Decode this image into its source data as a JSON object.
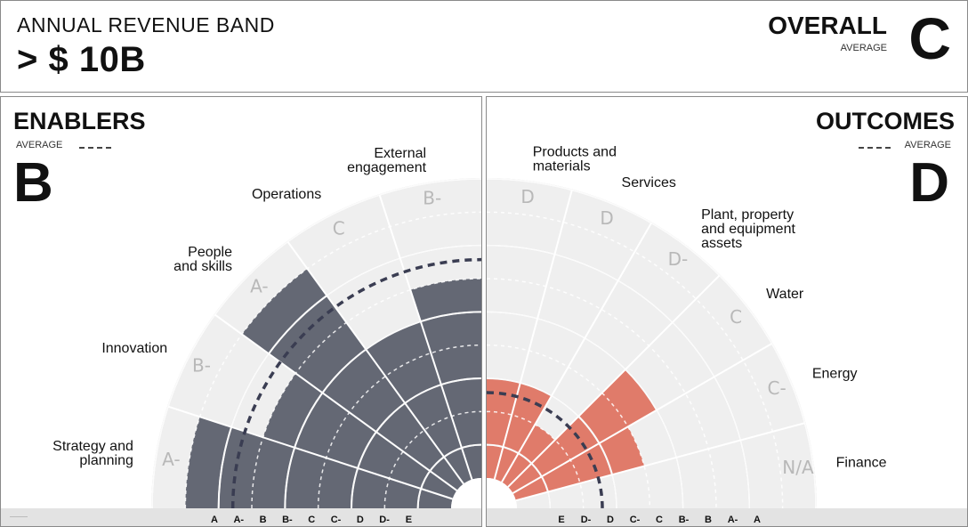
{
  "header": {
    "band_label": "ANNUAL REVENUE BAND",
    "band_value": "> $ 10B",
    "overall_title": "OVERALL",
    "overall_sub": "AVERAGE",
    "overall_grade": "C"
  },
  "enablers": {
    "title": "ENABLERS",
    "avg_label": "AVERAGE",
    "avg_grade": "B",
    "avg_level": 7,
    "categories": [
      {
        "name": "Strategy and planning",
        "lines": [
          "Strategy and",
          "planning"
        ],
        "grade": "A-",
        "level": 8
      },
      {
        "name": "Innovation",
        "lines": [
          "Innovation"
        ],
        "grade": "B-",
        "level": 6
      },
      {
        "name": "People and skills",
        "lines": [
          "People",
          "and skills"
        ],
        "grade": "A-",
        "level": 8
      },
      {
        "name": "Operations",
        "lines": [
          "Operations"
        ],
        "grade": "C",
        "level": 5
      },
      {
        "name": "External engagement",
        "lines": [
          "External",
          "engagement"
        ],
        "grade": "B-",
        "level": 6
      }
    ],
    "scale": [
      "A",
      "A-",
      "B",
      "B-",
      "C",
      "C-",
      "D",
      "D-",
      "E"
    ]
  },
  "outcomes": {
    "title": "OUTCOMES",
    "avg_label": "AVERAGE",
    "avg_grade": "D",
    "avg_level": 3,
    "categories": [
      {
        "name": "Products and materials",
        "lines": [
          "Products and",
          "materials"
        ],
        "grade": "D",
        "level": 3
      },
      {
        "name": "Services",
        "lines": [
          "Services"
        ],
        "grade": "D",
        "level": 3
      },
      {
        "name": "Plant, property and equipment assets",
        "lines": [
          "Plant, property",
          "and equipment",
          "assets"
        ],
        "grade": "D-",
        "level": 2
      },
      {
        "name": "Water",
        "lines": [
          "Water"
        ],
        "grade": "C",
        "level": 5
      },
      {
        "name": "Energy",
        "lines": [
          "Energy"
        ],
        "grade": "C-",
        "level": 4
      },
      {
        "name": "Finance",
        "lines": [
          "Finance"
        ],
        "grade": "N/A",
        "level": 0
      }
    ],
    "scale": [
      "E",
      "D-",
      "D",
      "C-",
      "C",
      "B-",
      "B",
      "A-",
      "A"
    ]
  },
  "colors": {
    "enablers_bar": "#646874",
    "outcomes_bar": "#e07b6a",
    "sector_bg": "#efefef",
    "ring": "#d0d0d0",
    "avg_line": "#3a3d52",
    "footer": "#e3e3e3"
  }
}
